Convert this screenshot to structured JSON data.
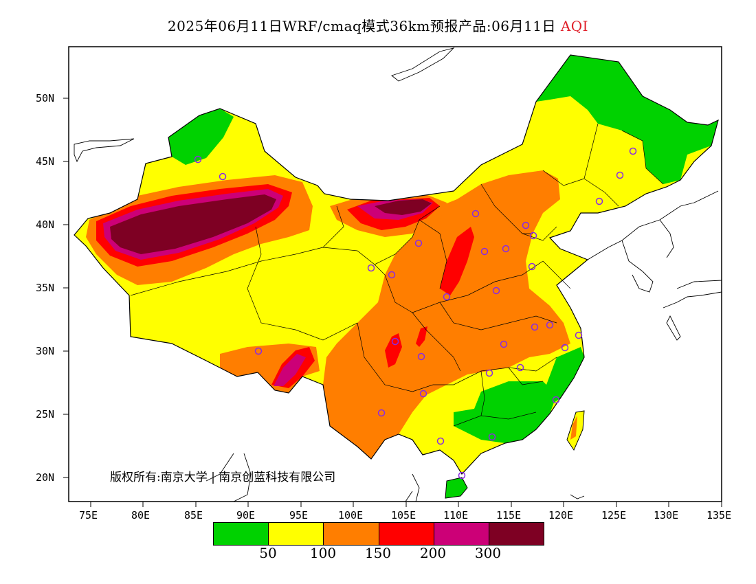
{
  "title": {
    "main": "2025年06月11日WRF/cmaq模式36km预报产品:06月11日",
    "product": "AQI"
  },
  "axes": {
    "y_labels": [
      "50N",
      "45N",
      "40N",
      "35N",
      "30N",
      "25N",
      "20N"
    ],
    "x_labels": [
      "75E",
      "80E",
      "85E",
      "90E",
      "95E",
      "100E",
      "105E",
      "110E",
      "115E",
      "120E",
      "125E",
      "130E",
      "135E"
    ]
  },
  "copyright": {
    "owner": "版权所有:南京大学",
    "partner": "南京创蓝科技有限公司"
  },
  "legend": {
    "colors": [
      "#00d200",
      "#ffff00",
      "#ff7e00",
      "#ff0000",
      "#cc0077",
      "#7e0023"
    ],
    "thresholds": [
      "50",
      "100",
      "150",
      "200",
      "300"
    ]
  }
}
